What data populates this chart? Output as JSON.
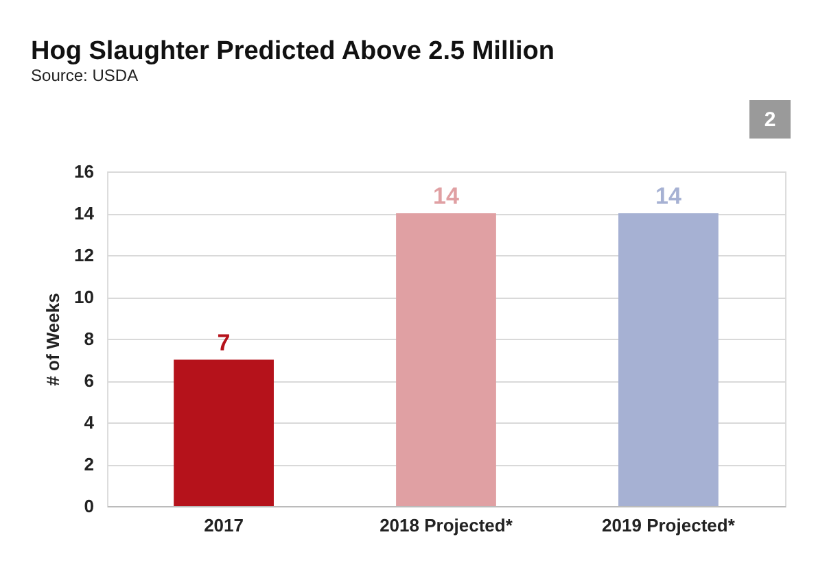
{
  "chart_data": {
    "type": "bar",
    "title": "Hog Slaughter Predicted Above 2.5 Million",
    "subtitle": "Source: USDA",
    "ylabel": "# of Weeks",
    "categories": [
      "2017",
      "2018 Projected*",
      "2019 Projected*"
    ],
    "values": [
      7,
      14,
      14
    ],
    "colors": [
      "#b5121b",
      "#e0a0a3",
      "#a6b1d3"
    ],
    "ylim": [
      0,
      16
    ],
    "yticks": [
      0,
      2,
      4,
      6,
      8,
      10,
      12,
      14,
      16
    ],
    "grid": "y",
    "data_labels": true,
    "annotations": [
      "2"
    ]
  }
}
